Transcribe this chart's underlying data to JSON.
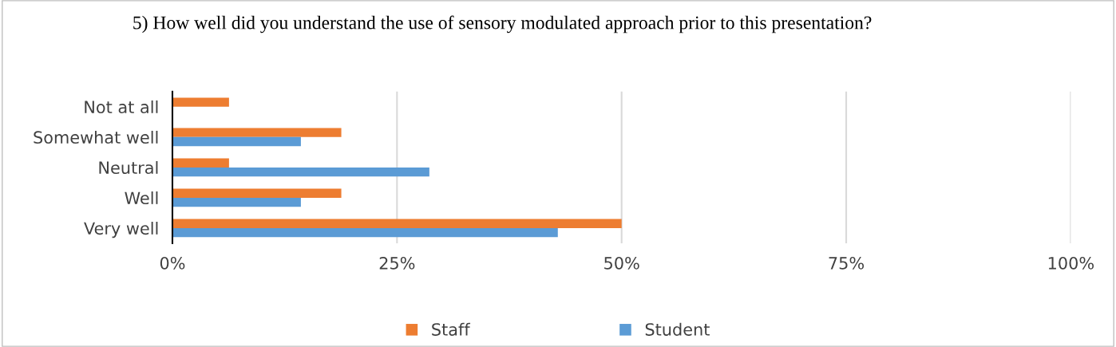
{
  "chart_data": {
    "type": "bar",
    "orientation": "horizontal",
    "title": "5) How well did you understand the use of sensory modulated approach prior to this presentation?",
    "categories": [
      "Not at all",
      "Somewhat well",
      "Neutral",
      "Well",
      "Very well"
    ],
    "series": [
      {
        "name": "Staff",
        "color": "#ed7d31",
        "values": [
          6.3,
          18.8,
          6.3,
          18.8,
          50
        ]
      },
      {
        "name": "Student",
        "color": "#5b9bd5",
        "values": [
          0,
          14.3,
          28.6,
          14.3,
          42.9
        ]
      }
    ],
    "xlim": [
      0,
      100
    ],
    "xticks": [
      {
        "value": 0,
        "label": "0%"
      },
      {
        "value": 25,
        "label": "25%"
      },
      {
        "value": 50,
        "label": "50%"
      },
      {
        "value": 75,
        "label": "75%"
      },
      {
        "value": 100,
        "label": "100%"
      }
    ],
    "grid": "x",
    "legend": "bottom"
  }
}
